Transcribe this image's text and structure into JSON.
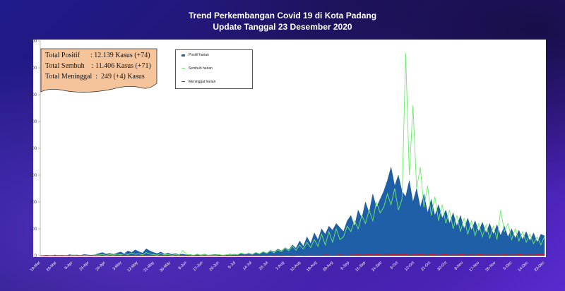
{
  "header": {
    "title": "Trend Perkembangan Covid 19 di Kota Padang",
    "subtitle": "Update Tanggal 23 Desember 2020"
  },
  "summary": {
    "positif": "Total Positif      : 12.139 Kasus (+74)",
    "sembuh": "Total Sembuh    : 11.406 Kasus (+71)",
    "meninggal": "Total Meninggal  :  249 (+4) Kasus"
  },
  "colors": {
    "positif": "#1f5fa8",
    "sembuh": "#66ee66",
    "meninggal": "#dd1111"
  },
  "chart_data": {
    "type": "area",
    "title": "Trend Perkembangan Covid 19 di Kota Padang",
    "subtitle": "Update Tanggal 23 Desember 2020",
    "ylim": [
      0,
      800
    ],
    "yticks": [
      0,
      100,
      200,
      300,
      400,
      500,
      600,
      700,
      800
    ],
    "x_tick_labels": [
      "19-Mar",
      "28-Mar",
      "6-Apr",
      "15-Apr",
      "24-Apr",
      "3-May",
      "12-May",
      "21-May",
      "30-May",
      "8-Jun",
      "17-Jun",
      "26-Jun",
      "5-Jul",
      "14-Jul",
      "23-Jul",
      "1-Aug",
      "10-Aug",
      "19-Aug",
      "28-Aug",
      "6-Sep",
      "15-Sep",
      "24-Sep",
      "3-Oct",
      "12-Oct",
      "21-Oct",
      "30-Oct",
      "8-Nov",
      "17-Nov",
      "26-Nov",
      "5-Dec",
      "14-Dec",
      "23-Dec"
    ],
    "legend_position": "top-left",
    "series": [
      {
        "name": "Positif harian",
        "style": "area",
        "values": [
          0,
          1,
          2,
          0,
          3,
          1,
          2,
          0,
          4,
          2,
          3,
          1,
          5,
          3,
          2,
          4,
          8,
          12,
          6,
          9,
          5,
          10,
          14,
          8,
          18,
          12,
          22,
          15,
          10,
          26,
          18,
          12,
          8,
          14,
          6,
          10,
          5,
          8,
          4,
          6,
          3,
          5,
          2,
          4,
          3,
          6,
          2,
          4,
          5,
          3,
          2,
          4,
          6,
          3,
          5,
          8,
          4,
          10,
          6,
          12,
          8,
          15,
          10,
          20,
          14,
          25,
          18,
          30,
          22,
          40,
          28,
          55,
          35,
          70,
          45,
          85,
          60,
          100,
          80,
          110,
          95,
          120,
          105,
          90,
          130,
          150,
          110,
          170,
          140,
          200,
          160,
          230,
          180,
          210,
          240,
          280,
          330,
          260,
          300,
          240,
          220,
          280,
          200,
          250,
          180,
          230,
          160,
          210,
          150,
          190,
          140,
          170,
          120,
          160,
          110,
          150,
          100,
          140,
          95,
          130,
          90,
          125,
          85,
          120,
          80,
          115,
          75,
          110,
          70,
          100,
          65,
          95,
          60,
          90,
          55,
          85,
          50,
          80,
          74
        ]
      },
      {
        "name": "Sembuh harian",
        "style": "line",
        "values": [
          0,
          0,
          0,
          1,
          0,
          2,
          0,
          1,
          0,
          3,
          1,
          0,
          2,
          1,
          0,
          3,
          2,
          5,
          1,
          4,
          2,
          6,
          3,
          8,
          4,
          10,
          5,
          7,
          3,
          12,
          6,
          4,
          2,
          8,
          3,
          5,
          1,
          4,
          2,
          20,
          5,
          3,
          2,
          6,
          2,
          4,
          1,
          3,
          2,
          5,
          1,
          4,
          3,
          6,
          4,
          10,
          6,
          8,
          5,
          12,
          7,
          15,
          9,
          18,
          10,
          22,
          14,
          28,
          18,
          35,
          20,
          40,
          25,
          50,
          30,
          60,
          35,
          80,
          40,
          90,
          50,
          100,
          60,
          70,
          110,
          90,
          130,
          100,
          150,
          120,
          170,
          130,
          200,
          160,
          180,
          230,
          190,
          250,
          170,
          210,
          755,
          300,
          560,
          250,
          330,
          180,
          260,
          150,
          220,
          130,
          190,
          120,
          170,
          100,
          150,
          90,
          140,
          80,
          130,
          75,
          120,
          70,
          115,
          65,
          110,
          60,
          170,
          90,
          120,
          60,
          100,
          55,
          90,
          50,
          80,
          45,
          70,
          40,
          71
        ]
      },
      {
        "name": "Meninggal harian",
        "style": "line",
        "values": [
          0,
          0,
          0,
          0,
          0,
          0,
          0,
          0,
          0,
          0,
          0,
          0,
          0,
          0,
          0,
          0,
          0,
          0,
          0,
          0,
          0,
          0,
          0,
          0,
          0,
          0,
          0,
          0,
          0,
          0,
          0,
          0,
          0,
          0,
          0,
          0,
          0,
          0,
          0,
          0,
          0,
          0,
          0,
          0,
          0,
          0,
          0,
          0,
          0,
          0,
          0,
          0,
          0,
          0,
          0,
          0,
          0,
          0,
          0,
          0,
          0,
          1,
          0,
          1,
          0,
          1,
          0,
          1,
          1,
          0,
          1,
          2,
          1,
          1,
          2,
          1,
          2,
          1,
          3,
          2,
          1,
          2,
          3,
          2,
          1,
          3,
          2,
          4,
          2,
          3,
          5,
          2,
          4,
          3,
          2,
          6,
          3,
          4,
          5,
          3,
          4,
          2,
          3,
          5,
          4,
          3,
          2,
          4,
          3,
          2,
          3,
          4,
          2,
          3,
          2,
          4,
          3,
          2,
          3,
          2,
          4,
          3,
          2,
          3,
          2,
          3,
          2,
          4,
          2,
          3,
          2,
          4,
          3,
          2,
          3,
          2,
          4,
          3,
          4
        ]
      }
    ]
  }
}
